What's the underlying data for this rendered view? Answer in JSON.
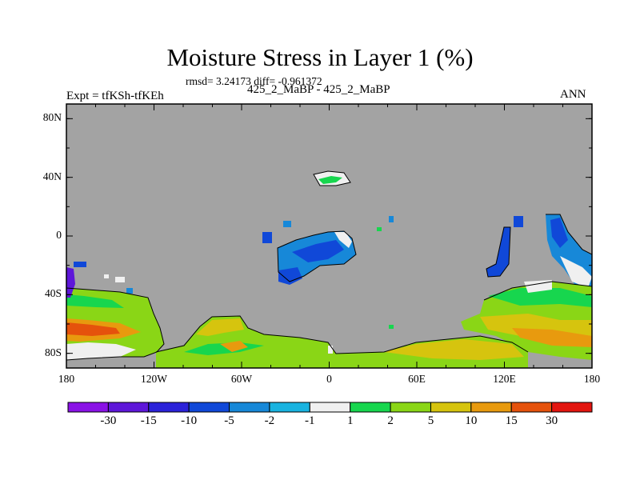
{
  "title": "Moisture Stress in Layer 1 (%)",
  "stats": "rmsd= 3.24173 diff= -0.961372",
  "left_label": "Expt = tfKSh-tfKEh",
  "center_label": "425_2_MaBP - 425_2_MaBP",
  "right_label": "ANN",
  "colors": {
    "background_mask": "#a3a3a3",
    "frame": "#000000"
  },
  "map": {
    "lon_range": [
      -180,
      180
    ],
    "lat_range": [
      -90,
      90
    ],
    "x_ticks": [
      "180",
      "120W",
      "60W",
      "0",
      "60E",
      "120E",
      "180"
    ],
    "y_ticks": [
      "80N",
      "40N",
      "0",
      "40S",
      "80S"
    ]
  },
  "colorbar": {
    "labels": [
      "-30",
      "-15",
      "-10",
      "-5",
      "-2",
      "-1",
      "1",
      "2",
      "5",
      "10",
      "15",
      "30"
    ],
    "colors": [
      "#8a12e6",
      "#5e17d9",
      "#2b22d9",
      "#1048d8",
      "#1788d8",
      "#19b3e0",
      "#f0f0f0",
      "#17d64e",
      "#8ad616",
      "#d6c40e",
      "#e89a0e",
      "#e5520c",
      "#e3150f"
    ]
  }
}
